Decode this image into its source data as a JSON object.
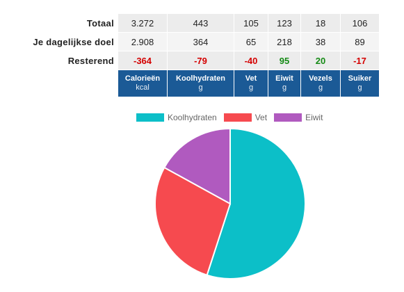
{
  "table": {
    "rows": [
      {
        "label": "Totaal",
        "values": [
          "3.272",
          "443",
          "105",
          "123",
          "18",
          "106"
        ]
      },
      {
        "label": "Je dagelijkse doel",
        "values": [
          "2.908",
          "364",
          "65",
          "218",
          "38",
          "89"
        ]
      },
      {
        "label": "Resterend",
        "values": [
          "-364",
          "-79",
          "-40",
          "95",
          "20",
          "-17"
        ],
        "status": [
          "negative",
          "negative",
          "negative",
          "positive",
          "positive",
          "negative"
        ]
      }
    ],
    "headers": [
      {
        "name": "Calorieën",
        "unit": "kcal"
      },
      {
        "name": "Koolhydraten",
        "unit": "g"
      },
      {
        "name": "Vet",
        "unit": "g"
      },
      {
        "name": "Eiwit",
        "unit": "g"
      },
      {
        "name": "Vezels",
        "unit": "g"
      },
      {
        "name": "Suiker",
        "unit": "g"
      }
    ],
    "colors": {
      "header_bg": "#1b5a96",
      "negative": "#d40000",
      "positive": "#158a15"
    }
  },
  "chart_data": {
    "type": "pie",
    "title": "",
    "legend_placement": "top",
    "labels": [
      "Koolhydraten",
      "Vet",
      "Eiwit"
    ],
    "values": [
      55,
      28,
      17
    ],
    "colors": [
      "#0cbfc8",
      "#f64a4f",
      "#b05abf"
    ]
  }
}
